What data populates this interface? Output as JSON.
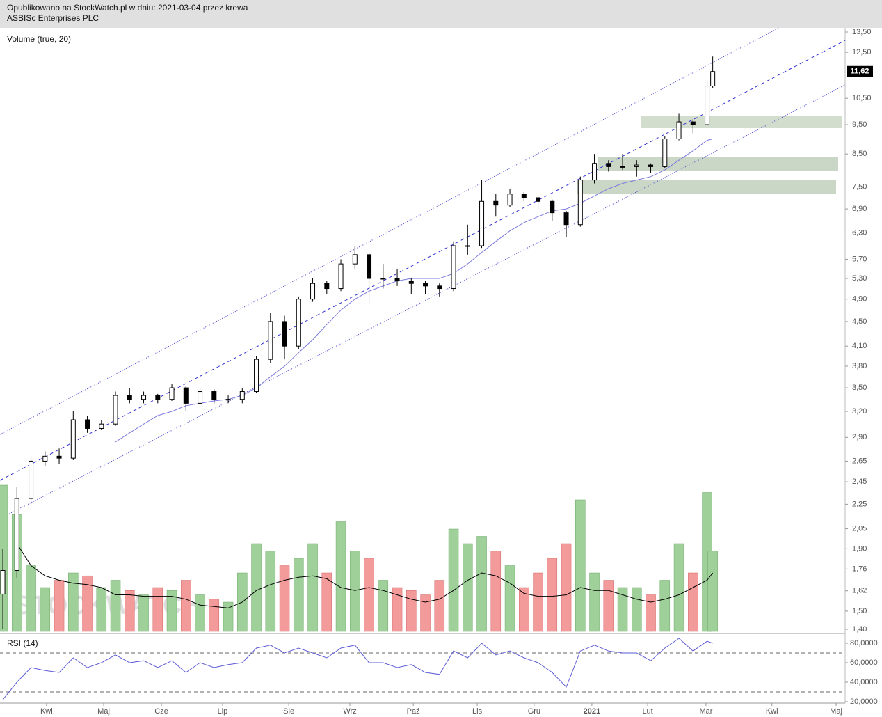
{
  "header": {
    "line1": "Opublikowano na StockWatch.pl w dniu: 2021-03-04 przez krewa",
    "line2": "ASBISc Enterprises PLC"
  },
  "chart_data": {
    "type": "candlestick",
    "log_scale": true,
    "volume_label": "Volume (true, 20)",
    "rsi_label": "RSI (14)",
    "watermark": "STOCKWATCH",
    "x": [
      1,
      6,
      11,
      16,
      21,
      26,
      31,
      36,
      41,
      46,
      51,
      56,
      61,
      66,
      71,
      76,
      81,
      86,
      91,
      96,
      101,
      106,
      111,
      116,
      121,
      126,
      131,
      136,
      141,
      146,
      151,
      156,
      161,
      166,
      171,
      176,
      181,
      186,
      191,
      196,
      201,
      206,
      211,
      216,
      221,
      226,
      231,
      236,
      241,
      246,
      251,
      253
    ],
    "candles": [
      [
        1.6,
        1.9,
        1.4,
        1.75
      ],
      [
        1.75,
        2.4,
        1.7,
        2.3
      ],
      [
        2.3,
        2.7,
        2.25,
        2.65
      ],
      [
        2.65,
        2.75,
        2.6,
        2.7
      ],
      [
        2.7,
        2.78,
        2.62,
        2.68
      ],
      [
        2.68,
        3.2,
        2.66,
        3.1
      ],
      [
        3.1,
        3.15,
        2.95,
        3.0
      ],
      [
        3.0,
        3.1,
        2.98,
        3.05
      ],
      [
        3.05,
        3.45,
        3.03,
        3.4
      ],
      [
        3.4,
        3.5,
        3.3,
        3.35
      ],
      [
        3.35,
        3.45,
        3.3,
        3.4
      ],
      [
        3.4,
        3.42,
        3.3,
        3.35
      ],
      [
        3.35,
        3.55,
        3.33,
        3.5
      ],
      [
        3.5,
        3.52,
        3.2,
        3.3
      ],
      [
        3.3,
        3.5,
        3.28,
        3.45
      ],
      [
        3.45,
        3.48,
        3.3,
        3.35
      ],
      [
        3.35,
        3.4,
        3.3,
        3.35
      ],
      [
        3.35,
        3.5,
        3.3,
        3.45
      ],
      [
        3.45,
        3.95,
        3.43,
        3.9
      ],
      [
        3.9,
        4.65,
        3.85,
        4.5
      ],
      [
        4.5,
        4.6,
        3.9,
        4.1
      ],
      [
        4.1,
        4.95,
        4.05,
        4.9
      ],
      [
        4.9,
        5.3,
        4.85,
        5.2
      ],
      [
        5.2,
        5.25,
        5.0,
        5.1
      ],
      [
        5.1,
        5.7,
        5.05,
        5.6
      ],
      [
        5.6,
        6.0,
        5.5,
        5.8
      ],
      [
        5.8,
        5.85,
        4.8,
        5.3
      ],
      [
        5.3,
        5.6,
        5.1,
        5.3
      ],
      [
        5.3,
        5.5,
        5.15,
        5.25
      ],
      [
        5.25,
        5.3,
        5.0,
        5.2
      ],
      [
        5.2,
        5.25,
        5.0,
        5.15
      ],
      [
        5.15,
        5.2,
        4.95,
        5.1
      ],
      [
        5.1,
        6.1,
        5.05,
        6.0
      ],
      [
        6.0,
        6.5,
        5.8,
        6.0
      ],
      [
        6.0,
        7.7,
        5.95,
        7.1
      ],
      [
        7.1,
        7.3,
        6.7,
        7.0
      ],
      [
        7.0,
        7.45,
        6.95,
        7.3
      ],
      [
        7.3,
        7.35,
        7.1,
        7.2
      ],
      [
        7.2,
        7.25,
        6.9,
        7.1
      ],
      [
        7.1,
        7.15,
        6.6,
        6.8
      ],
      [
        6.8,
        6.85,
        6.2,
        6.5
      ],
      [
        6.5,
        7.8,
        6.45,
        7.7
      ],
      [
        7.7,
        8.5,
        7.6,
        8.2
      ],
      [
        8.2,
        8.3,
        7.95,
        8.1
      ],
      [
        8.1,
        8.5,
        8.0,
        8.1
      ],
      [
        8.1,
        8.3,
        7.8,
        8.15
      ],
      [
        8.15,
        8.2,
        7.9,
        8.1
      ],
      [
        8.1,
        9.1,
        8.05,
        9.0
      ],
      [
        9.0,
        9.9,
        8.95,
        9.6
      ],
      [
        9.6,
        9.7,
        9.2,
        9.5
      ],
      [
        9.5,
        11.2,
        9.45,
        11.0
      ],
      [
        11.0,
        12.3,
        10.9,
        11.62
      ]
    ],
    "ma": [
      null,
      null,
      null,
      null,
      null,
      null,
      null,
      null,
      2.85,
      2.95,
      3.05,
      3.15,
      3.2,
      3.27,
      3.3,
      3.33,
      3.35,
      3.4,
      3.5,
      3.65,
      3.8,
      4.0,
      4.2,
      4.45,
      4.7,
      4.9,
      5.05,
      5.15,
      5.25,
      5.3,
      5.3,
      5.3,
      5.4,
      5.6,
      5.85,
      6.1,
      6.35,
      6.55,
      6.7,
      6.85,
      6.9,
      7.05,
      7.25,
      7.45,
      7.6,
      7.7,
      7.8,
      8.0,
      8.3,
      8.6,
      8.95,
      9.0
    ],
    "volume": [
      100,
      80,
      45,
      30,
      35,
      40,
      38,
      30,
      35,
      28,
      25,
      30,
      28,
      35,
      25,
      22,
      20,
      40,
      60,
      55,
      45,
      50,
      60,
      40,
      75,
      55,
      50,
      35,
      30,
      28,
      25,
      35,
      70,
      60,
      65,
      55,
      45,
      30,
      40,
      50,
      60,
      90,
      40,
      35,
      30,
      30,
      25,
      35,
      60,
      40,
      95,
      55
    ],
    "volume_ma": [
      null,
      60,
      45,
      38,
      35,
      33,
      32,
      30,
      25,
      25,
      24,
      24,
      24,
      22,
      18,
      17,
      16,
      20,
      28,
      32,
      35,
      37,
      38,
      36,
      30,
      28,
      30,
      28,
      25,
      22,
      20,
      22,
      28,
      35,
      40,
      38,
      33,
      26,
      24,
      24,
      25,
      30,
      28,
      28,
      25,
      22,
      20,
      22,
      25,
      30,
      35,
      40
    ],
    "vlim": [
      0,
      100
    ],
    "rsi": [
      22,
      40,
      55,
      52,
      50,
      65,
      55,
      60,
      68,
      60,
      62,
      55,
      62,
      50,
      60,
      55,
      58,
      60,
      75,
      78,
      70,
      75,
      70,
      65,
      75,
      78,
      60,
      60,
      55,
      58,
      50,
      48,
      72,
      65,
      80,
      68,
      72,
      65,
      60,
      50,
      35,
      72,
      78,
      72,
      70,
      70,
      62,
      75,
      85,
      72,
      82,
      80
    ],
    "rsi_levels": [
      70,
      30
    ],
    "xlim": [
      0,
      300
    ],
    "xticks": [
      {
        "value": 16.5,
        "label": "Kwi"
      },
      {
        "value": 36.8,
        "label": "Maj"
      },
      {
        "value": 57.3,
        "label": "Cze"
      },
      {
        "value": 79,
        "label": "Lip"
      },
      {
        "value": 102.5,
        "label": "Sie"
      },
      {
        "value": 124.2,
        "label": "Wrz"
      },
      {
        "value": 146.7,
        "label": "Paź"
      },
      {
        "value": 169.4,
        "label": "Lis"
      },
      {
        "value": 189.6,
        "label": "Gru"
      },
      {
        "value": 210.1,
        "label": "2021"
      },
      {
        "value": 229.9,
        "label": "Lut"
      },
      {
        "value": 250.6,
        "label": "Mar"
      },
      {
        "value": 274,
        "label": "Kwi"
      },
      {
        "value": 296.8,
        "label": "Maj"
      }
    ],
    "ylim": [
      1.4,
      13.5
    ],
    "yticks": [
      {
        "value": 13.5,
        "label": "13,50"
      },
      {
        "value": 12.5,
        "label": "12,50"
      },
      {
        "value": 10.5,
        "label": "10,50"
      },
      {
        "value": 9.5,
        "label": "9,50"
      },
      {
        "value": 8.5,
        "label": "8,50"
      },
      {
        "value": 7.5,
        "label": "7,50"
      },
      {
        "value": 6.9,
        "label": "6,90"
      },
      {
        "value": 6.3,
        "label": "6,30"
      },
      {
        "value": 5.7,
        "label": "5,70"
      },
      {
        "value": 5.3,
        "label": "5,30"
      },
      {
        "value": 4.9,
        "label": "4,90"
      },
      {
        "value": 4.5,
        "label": "4,50"
      },
      {
        "value": 4.1,
        "label": "4,10"
      },
      {
        "value": 3.8,
        "label": "3,80"
      },
      {
        "value": 3.5,
        "label": "3,50"
      },
      {
        "value": 3.2,
        "label": "3,20"
      },
      {
        "value": 2.9,
        "label": "2,90"
      },
      {
        "value": 2.65,
        "label": "2,65"
      },
      {
        "value": 2.45,
        "label": "2,45"
      },
      {
        "value": 2.25,
        "label": "2,25"
      },
      {
        "value": 2.05,
        "label": "2,05"
      },
      {
        "value": 1.9,
        "label": "1,90"
      },
      {
        "value": 1.76,
        "label": "1,76"
      },
      {
        "value": 1.62,
        "label": "1,62"
      },
      {
        "value": 1.5,
        "label": "1,50"
      },
      {
        "value": 1.4,
        "label": "1,40"
      }
    ],
    "last_price": {
      "value": 11.62,
      "label": "11,62"
    },
    "rsi_ylim": [
      20,
      80
    ],
    "rsi_yticks": [
      {
        "value": 80,
        "label": "80,0000"
      },
      {
        "value": 60,
        "label": "60,0000"
      },
      {
        "value": 40,
        "label": "40,0000"
      },
      {
        "value": 20,
        "label": "20,0000"
      }
    ],
    "colors": {
      "up": "#ffffff",
      "down": "#000000",
      "vol_up": "#9fd09a",
      "vol_down": "#f39a9a",
      "ma": "#7b7bdf",
      "volume_ma": "#000000",
      "rsi": "#5b5bd6"
    }
  }
}
